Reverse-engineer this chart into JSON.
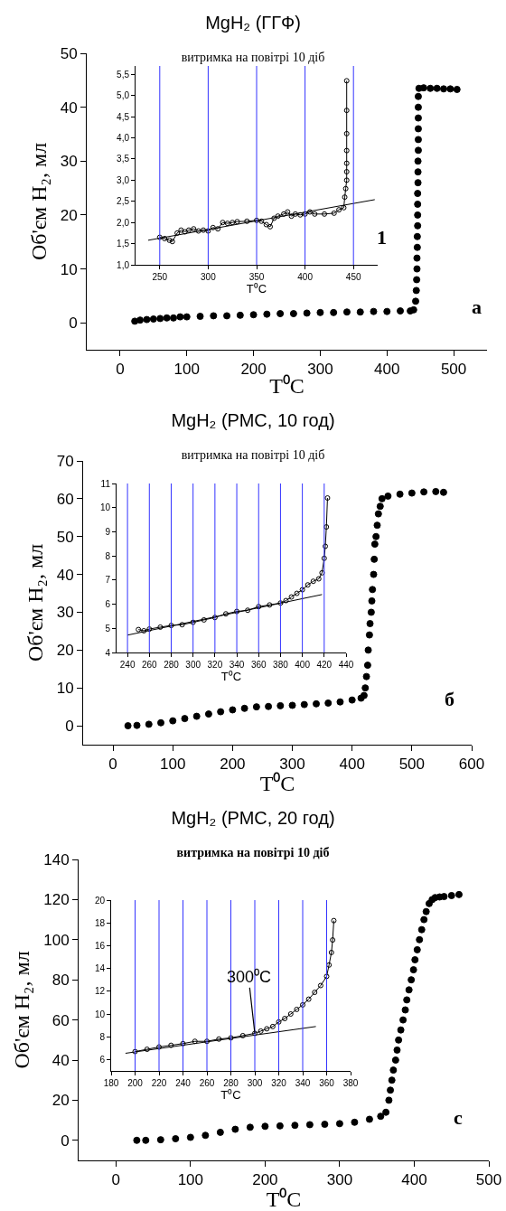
{
  "chart_data": [
    {
      "type": "scatter",
      "title": "MgH₂ (ГГФ)",
      "subtitle": "витримка на повітрі 10 діб",
      "xlabel": "T⁰C",
      "ylabel": "Об'єм H₂, мл",
      "annotations": [
        "1",
        "а"
      ],
      "marker": "circle",
      "xlim": [
        -50,
        550
      ],
      "ylim": [
        -5,
        50
      ],
      "xticks": [
        0,
        100,
        200,
        300,
        400,
        500
      ],
      "yticks": [
        0,
        10,
        20,
        30,
        40,
        50
      ],
      "series": [
        {
          "color": "#000000",
          "x": [
            22,
            30,
            40,
            50,
            60,
            70,
            80,
            90,
            100,
            120,
            140,
            160,
            180,
            200,
            220,
            240,
            260,
            280,
            300,
            320,
            340,
            360,
            380,
            400,
            420,
            435,
            440,
            443,
            444,
            444.5,
            445,
            445,
            445.5,
            445.5,
            446,
            446,
            446,
            446,
            446.5,
            446.5,
            446.5,
            447,
            447,
            447,
            447,
            447,
            447,
            448,
            455,
            465,
            475,
            485,
            495,
            505
          ],
          "values": [
            0.3,
            0.5,
            0.6,
            0.7,
            0.8,
            0.9,
            0.9,
            1.1,
            1.1,
            1.2,
            1.3,
            1.3,
            1.4,
            1.5,
            1.6,
            1.7,
            1.7,
            1.8,
            1.9,
            1.9,
            2.0,
            2.0,
            2.1,
            2.1,
            2.2,
            2.2,
            2.4,
            4,
            6,
            8,
            10,
            12,
            14,
            16,
            18,
            20,
            22,
            24,
            26,
            28,
            30,
            32,
            34,
            36,
            38,
            40,
            42,
            43.5,
            43.6,
            43.5,
            43.5,
            43.4,
            43.4,
            43.3
          ]
        }
      ]
    },
    {
      "type": "line",
      "xlabel": "T⁰C",
      "marker": "circle",
      "line_style": "solid",
      "xlim": [
        225,
        475
      ],
      "ylim": [
        1.0,
        5.7
      ],
      "xticks": [
        250,
        300,
        350,
        400,
        450
      ],
      "yticks": [
        {
          "value": 1.0,
          "label": "1,0"
        },
        {
          "value": 1.5,
          "label": "1,5"
        },
        {
          "value": 2.0,
          "label": "2,0"
        },
        {
          "value": 2.5,
          "label": "2,5"
        },
        {
          "value": 3.0,
          "label": "3,0"
        },
        {
          "value": 3.5,
          "label": "3,5"
        },
        {
          "value": 4.0,
          "label": "4,0"
        },
        {
          "value": 4.5,
          "label": "4,5"
        },
        {
          "value": 5.0,
          "label": "5,0"
        },
        {
          "value": 5.5,
          "label": "5,5"
        }
      ],
      "ref_lines": [
        {
          "axis": "x",
          "value": 250,
          "color": "#3333ff"
        },
        {
          "axis": "x",
          "value": 300,
          "color": "#3333ff"
        },
        {
          "axis": "x",
          "value": 350,
          "color": "#3333ff"
        },
        {
          "axis": "x",
          "value": 400,
          "color": "#3333ff"
        },
        {
          "axis": "x",
          "value": 450,
          "color": "#3333ff"
        }
      ],
      "series": [
        {
          "color": "#000000",
          "x": [
            250,
            255,
            260,
            263,
            268,
            272,
            276,
            280,
            285,
            290,
            295,
            300,
            305,
            310,
            315,
            320,
            325,
            330,
            340,
            350,
            355,
            360,
            364,
            368,
            372,
            378,
            382,
            386,
            390,
            395,
            400,
            405,
            410,
            420,
            430,
            435,
            440,
            441,
            442,
            443,
            443,
            443,
            443,
            443,
            443,
            443
          ],
          "values": [
            1.65,
            1.62,
            1.58,
            1.55,
            1.75,
            1.82,
            1.78,
            1.82,
            1.85,
            1.8,
            1.82,
            1.8,
            1.88,
            1.85,
            2.0,
            1.98,
            2.0,
            2.02,
            2.03,
            2.05,
            2.03,
            1.95,
            1.9,
            2.1,
            2.15,
            2.2,
            2.25,
            2.15,
            2.2,
            2.18,
            2.2,
            2.25,
            2.2,
            2.2,
            2.22,
            2.3,
            2.35,
            2.6,
            2.8,
            3.0,
            3.2,
            3.4,
            3.7,
            4.1,
            4.65,
            5.35
          ]
        },
        {
          "type": "line",
          "marker": "none",
          "color": "#000000",
          "x": [
            238,
            472
          ],
          "values": [
            1.58,
            2.54
          ]
        }
      ]
    },
    {
      "type": "scatter",
      "title": "MgH₂ (РМС, 10 год)",
      "subtitle": "витримка на повітрі 10 діб",
      "xlabel": "T⁰C",
      "ylabel": "Об'єм H₂, мл",
      "annotations": [
        "б"
      ],
      "marker": "circle",
      "xlim": [
        -50,
        600
      ],
      "ylim": [
        -5,
        70
      ],
      "xticks": [
        0,
        100,
        200,
        300,
        400,
        500,
        600
      ],
      "yticks": [
        0,
        10,
        20,
        30,
        40,
        50,
        60,
        70
      ],
      "series": [
        {
          "color": "#000000",
          "x": [
            25,
            40,
            60,
            80,
            100,
            120,
            140,
            160,
            180,
            200,
            220,
            240,
            260,
            280,
            300,
            320,
            340,
            360,
            380,
            400,
            415,
            420,
            422,
            424,
            426,
            427,
            429,
            430,
            432,
            433,
            434,
            436,
            437,
            438,
            440,
            442,
            444,
            447,
            450,
            460,
            480,
            500,
            520,
            540,
            553
          ],
          "values": [
            0,
            0.1,
            0.4,
            0.8,
            1.3,
            1.9,
            2.5,
            3.1,
            3.7,
            4.2,
            4.6,
            5.0,
            5.1,
            5.3,
            5.4,
            5.6,
            5.8,
            6.0,
            6.3,
            6.8,
            7.3,
            8,
            10,
            13,
            16,
            20,
            24,
            27,
            30,
            33,
            36,
            40,
            44,
            48,
            50,
            53,
            56,
            58,
            60,
            60.7,
            61.2,
            61.5,
            61.8,
            61.9,
            61.7
          ]
        }
      ]
    },
    {
      "type": "line",
      "xlabel": "T⁰C",
      "marker": "circle",
      "line_style": "solid",
      "xlim": [
        230,
        440
      ],
      "ylim": [
        4,
        11
      ],
      "xticks": [
        240,
        260,
        280,
        300,
        320,
        340,
        360,
        380,
        400,
        420,
        440
      ],
      "yticks": [
        4,
        5,
        6,
        7,
        8,
        9,
        10,
        11
      ],
      "ref_lines": [
        {
          "axis": "x",
          "value": 240,
          "color": "#3333ff"
        },
        {
          "axis": "x",
          "value": 260,
          "color": "#3333ff"
        },
        {
          "axis": "x",
          "value": 280,
          "color": "#3333ff"
        },
        {
          "axis": "x",
          "value": 300,
          "color": "#3333ff"
        },
        {
          "axis": "x",
          "value": 320,
          "color": "#3333ff"
        },
        {
          "axis": "x",
          "value": 340,
          "color": "#3333ff"
        },
        {
          "axis": "x",
          "value": 360,
          "color": "#3333ff"
        },
        {
          "axis": "x",
          "value": 380,
          "color": "#3333ff"
        },
        {
          "axis": "x",
          "value": 400,
          "color": "#3333ff"
        },
        {
          "axis": "x",
          "value": 420,
          "color": "#3333ff"
        }
      ],
      "series": [
        {
          "color": "#000000",
          "x": [
            250,
            255,
            260,
            270,
            280,
            290,
            300,
            310,
            320,
            330,
            340,
            350,
            360,
            370,
            380,
            385,
            390,
            395,
            400,
            405,
            410,
            415,
            418,
            420,
            421,
            422,
            423
          ],
          "values": [
            4.95,
            4.9,
            4.97,
            5.05,
            5.12,
            5.15,
            5.25,
            5.35,
            5.45,
            5.6,
            5.7,
            5.75,
            5.9,
            5.97,
            6.05,
            6.15,
            6.3,
            6.45,
            6.6,
            6.8,
            6.95,
            7.05,
            7.3,
            7.9,
            8.4,
            9.2,
            10.4
          ]
        },
        {
          "type": "line",
          "marker": "none",
          "color": "#000000",
          "x": [
            240,
            418
          ],
          "values": [
            4.72,
            6.4
          ]
        }
      ]
    },
    {
      "type": "scatter",
      "title": "MgH₂ (РМС, 20 год)",
      "subtitle": "витримка на повітрі 10 діб",
      "xlabel": "T⁰C",
      "ylabel": "Об'єм H₂, мл",
      "annotations": [
        "с"
      ],
      "marker": "circle",
      "xlim": [
        -50,
        500
      ],
      "ylim": [
        -10,
        140
      ],
      "xticks": [
        0,
        100,
        200,
        300,
        400,
        500
      ],
      "yticks": [
        0,
        20,
        40,
        60,
        80,
        100,
        120,
        140
      ],
      "series": [
        {
          "color": "#000000",
          "x": [
            28,
            40,
            60,
            80,
            100,
            120,
            140,
            160,
            180,
            200,
            220,
            240,
            260,
            280,
            300,
            320,
            340,
            355,
            362,
            366,
            368,
            370,
            372,
            375,
            377,
            379,
            382,
            385,
            388,
            390,
            393,
            396,
            399,
            401,
            404,
            407,
            410,
            413,
            416,
            420,
            424,
            428,
            434,
            440,
            450,
            460
          ],
          "values": [
            0,
            0,
            0.3,
            0.8,
            1.5,
            2.5,
            4,
            5.5,
            6.5,
            7,
            7.2,
            7.5,
            7.8,
            8,
            8.3,
            9,
            10.5,
            12,
            14,
            20,
            25,
            30,
            35,
            40,
            45,
            50,
            55,
            60,
            65,
            70,
            75,
            80,
            85,
            90,
            95,
            100,
            105,
            110,
            114,
            118,
            120,
            121,
            121.3,
            121.5,
            122,
            122.5
          ]
        }
      ]
    },
    {
      "type": "line",
      "xlabel": "T⁰C",
      "marker": "circle",
      "line_style": "solid",
      "xlim": [
        180,
        380
      ],
      "ylim": [
        5,
        20
      ],
      "xticks": [
        180,
        200,
        220,
        240,
        260,
        280,
        300,
        320,
        340,
        360,
        380
      ],
      "yticks": [
        6,
        8,
        10,
        12,
        14,
        16,
        18,
        20
      ],
      "annotations": [
        {
          "text": "300⁰C",
          "x": 300,
          "y": 8.3
        }
      ],
      "ref_lines": [
        {
          "axis": "x",
          "value": 200,
          "color": "#3333ff"
        },
        {
          "axis": "x",
          "value": 220,
          "color": "#3333ff"
        },
        {
          "axis": "x",
          "value": 240,
          "color": "#3333ff"
        },
        {
          "axis": "x",
          "value": 260,
          "color": "#3333ff"
        },
        {
          "axis": "x",
          "value": 280,
          "color": "#3333ff"
        },
        {
          "axis": "x",
          "value": 300,
          "color": "#3333ff"
        },
        {
          "axis": "x",
          "value": 320,
          "color": "#3333ff"
        },
        {
          "axis": "x",
          "value": 340,
          "color": "#3333ff"
        },
        {
          "axis": "x",
          "value": 360,
          "color": "#3333ff"
        }
      ],
      "series": [
        {
          "color": "#000000",
          "x": [
            200,
            210,
            220,
            230,
            240,
            250,
            260,
            270,
            280,
            290,
            300,
            305,
            310,
            315,
            320,
            325,
            330,
            335,
            340,
            345,
            350,
            355,
            360,
            362,
            364,
            365,
            366
          ],
          "values": [
            6.7,
            6.9,
            7.1,
            7.25,
            7.4,
            7.6,
            7.6,
            7.8,
            7.9,
            8.1,
            8.3,
            8.5,
            8.7,
            8.9,
            9.3,
            9.6,
            10,
            10.4,
            10.8,
            11.3,
            11.9,
            12.5,
            13.3,
            14.3,
            15.4,
            16.5,
            18.2
          ]
        },
        {
          "type": "line",
          "marker": "none",
          "color": "#000000",
          "x": [
            192,
            351
          ],
          "values": [
            6.55,
            8.9
          ]
        }
      ]
    }
  ]
}
